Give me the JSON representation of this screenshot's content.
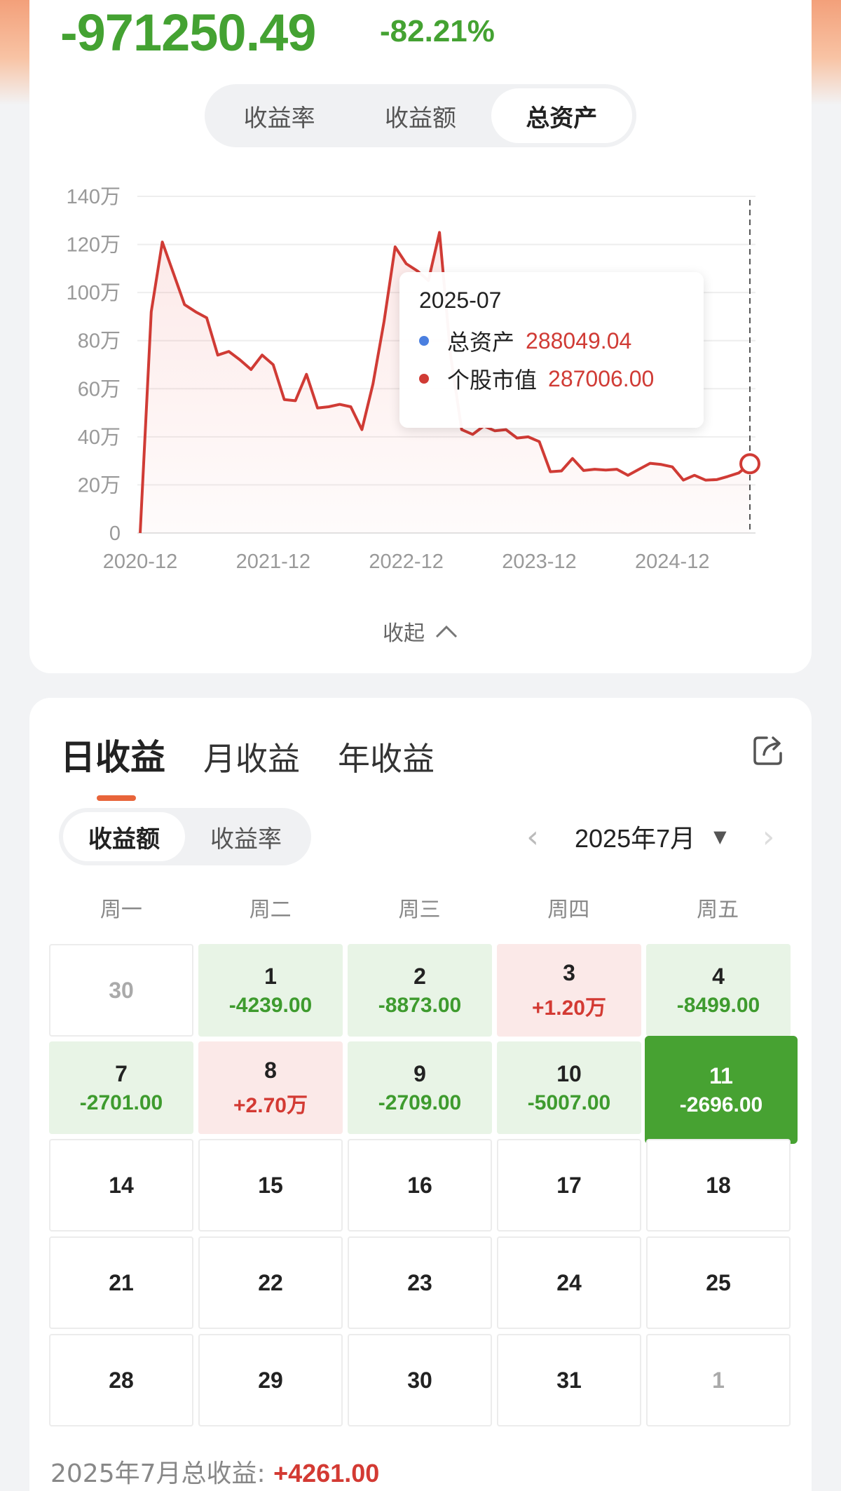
{
  "header": {
    "total_value": "-971250.49",
    "total_pct": "-82.21%"
  },
  "chart_tabs": [
    {
      "label": "收益率",
      "active": false
    },
    {
      "label": "收益额",
      "active": false
    },
    {
      "label": "总资产",
      "active": true
    }
  ],
  "chart_data": {
    "type": "line",
    "ylim": [
      0,
      1400000
    ],
    "y_ticks": [
      "0",
      "20万",
      "40万",
      "60万",
      "80万",
      "100万",
      "120万",
      "140万"
    ],
    "x_ticks": [
      "2020-12",
      "2021-12",
      "2022-12",
      "2023-12",
      "2024-12"
    ],
    "x_start": "2020-12",
    "series": [
      {
        "color": "#d03b35",
        "values": [
          0,
          920000,
          1210000,
          1080000,
          950000,
          920000,
          895000,
          740000,
          755000,
          720000,
          680000,
          740000,
          700000,
          555000,
          550000,
          660000,
          520000,
          525000,
          535000,
          525000,
          430000,
          620000,
          880000,
          1190000,
          1120000,
          1090000,
          1050000,
          1250000,
          740000,
          430000,
          410000,
          445000,
          425000,
          430000,
          395000,
          400000,
          380000,
          255000,
          258000,
          310000,
          260000,
          265000,
          262000,
          265000,
          240000,
          265000,
          290000,
          285000,
          275000,
          220000,
          240000,
          220000,
          222000,
          235000,
          250000,
          288049
        ]
      }
    ],
    "highlight_label": "2025-07"
  },
  "tooltip": {
    "date": "2025-07",
    "rows": [
      {
        "name": "总资产",
        "value": "288049.04",
        "color": "#4a7fe0"
      },
      {
        "name": "个股市值",
        "value": "287006.00",
        "color": "#d03b35"
      }
    ]
  },
  "collapse_label": "收起",
  "profit_tabs": [
    {
      "label": "日收益",
      "active": true
    },
    {
      "label": "月收益",
      "active": false
    },
    {
      "label": "年收益",
      "active": false
    }
  ],
  "mode_tabs": [
    {
      "label": "收益额",
      "active": true
    },
    {
      "label": "收益率",
      "active": false
    }
  ],
  "month_label": "2025年7月",
  "weekdays": [
    "周一",
    "周二",
    "周三",
    "周四",
    "周五"
  ],
  "calendar": [
    {
      "day": "30",
      "value": "",
      "type": "other"
    },
    {
      "day": "1",
      "value": "-4239.00",
      "type": "loss"
    },
    {
      "day": "2",
      "value": "-8873.00",
      "type": "loss"
    },
    {
      "day": "3",
      "value": "+1.20万",
      "type": "gain"
    },
    {
      "day": "4",
      "value": "-8499.00",
      "type": "loss"
    },
    {
      "day": "7",
      "value": "-2701.00",
      "type": "loss"
    },
    {
      "day": "8",
      "value": "+2.70万",
      "type": "gain"
    },
    {
      "day": "9",
      "value": "-2709.00",
      "type": "loss"
    },
    {
      "day": "10",
      "value": "-5007.00",
      "type": "loss"
    },
    {
      "day": "11",
      "value": "-2696.00",
      "type": "selected"
    },
    {
      "day": "14",
      "value": "",
      "type": "normal"
    },
    {
      "day": "15",
      "value": "",
      "type": "normal"
    },
    {
      "day": "16",
      "value": "",
      "type": "normal"
    },
    {
      "day": "17",
      "value": "",
      "type": "normal"
    },
    {
      "day": "18",
      "value": "",
      "type": "normal"
    },
    {
      "day": "21",
      "value": "",
      "type": "normal"
    },
    {
      "day": "22",
      "value": "",
      "type": "normal"
    },
    {
      "day": "23",
      "value": "",
      "type": "normal"
    },
    {
      "day": "24",
      "value": "",
      "type": "normal"
    },
    {
      "day": "25",
      "value": "",
      "type": "normal"
    },
    {
      "day": "28",
      "value": "",
      "type": "normal"
    },
    {
      "day": "29",
      "value": "",
      "type": "normal"
    },
    {
      "day": "30",
      "value": "",
      "type": "normal"
    },
    {
      "day": "31",
      "value": "",
      "type": "normal"
    },
    {
      "day": "1",
      "value": "",
      "type": "other"
    }
  ],
  "summary": {
    "label": "2025年7月总收益:",
    "value": "+4261.00"
  }
}
